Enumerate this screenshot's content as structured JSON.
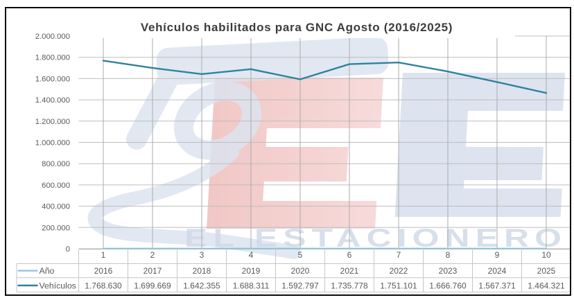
{
  "chart_data": {
    "type": "line",
    "title": "Vehículos habilitados para GNC Agosto (2016/2025)",
    "categories": [
      "1",
      "2",
      "3",
      "4",
      "5",
      "6",
      "7",
      "8",
      "9",
      "10"
    ],
    "series": [
      {
        "name": "Año",
        "values": [
          2016,
          2017,
          2018,
          2019,
          2020,
          2021,
          2022,
          2023,
          2024,
          2025
        ],
        "color": "#95c5da",
        "width": 2.2
      },
      {
        "name": "Vehículos",
        "values": [
          1768630,
          1699669,
          1642355,
          1688311,
          1592797,
          1735778,
          1751101,
          1666760,
          1567371,
          1464321
        ],
        "color": "#2f839d",
        "width": 2.4
      }
    ],
    "ylim": [
      0,
      2000000
    ],
    "ytick_step": 200000,
    "ytick_labels": [
      "0",
      "200.000",
      "400.000",
      "600.000",
      "800.000",
      "1.000.000",
      "1.200.000",
      "1.400.000",
      "1.600.000",
      "1.800.000",
      "2.000.000"
    ],
    "grid": {
      "horizontal": true,
      "vertical": true
    },
    "legend_position": "data-table-left",
    "data_table": {
      "rows": [
        {
          "label": "Año",
          "cells": [
            "2016",
            "2017",
            "2018",
            "2019",
            "2020",
            "2021",
            "2022",
            "2023",
            "2024",
            "2025"
          ]
        },
        {
          "label": "Vehículos",
          "cells": [
            "1.768.630",
            "1.699.669",
            "1.642.355",
            "1.688.311",
            "1.592.797",
            "1.735.778",
            "1.751.101",
            "1.666.760",
            "1.567.371",
            "1.464.321"
          ]
        }
      ]
    }
  },
  "watermark": {
    "text": "EL ESTACIONERO",
    "letters": "EE",
    "colors": {
      "blue": "#dae2ef",
      "red": "#f2c9c7",
      "text": "#c8d4e3",
      "nozzle": "#dce4f0"
    }
  },
  "colors": {
    "title": "#3c3c3c",
    "axis_text": "#595959",
    "h_gridline": "#bdbdbd",
    "v_gridline": "#ababab",
    "axis_line": "#a2a2a2",
    "table_border": "#c6c6c6",
    "frame": "#0b0b0b",
    "background": "#ffffff"
  }
}
